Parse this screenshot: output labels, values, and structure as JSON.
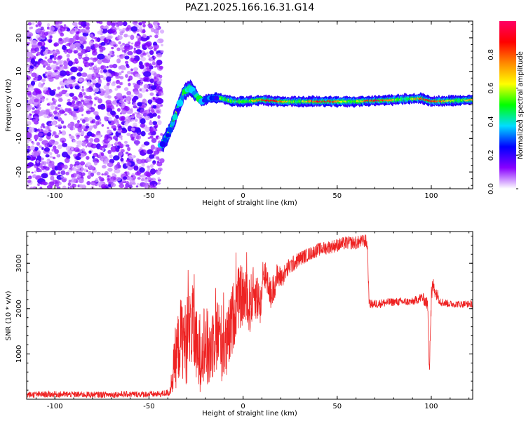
{
  "title": "PAZ1.2025.166.16.31.G14",
  "chart_data": [
    {
      "type": "heatmap",
      "xlabel": "Height of straight line (km)",
      "ylabel": "Frequency (Hz)",
      "xlim": [
        -115,
        122
      ],
      "ylim": [
        -25,
        25
      ],
      "x_ticks": [
        -100,
        -50,
        0,
        50,
        100
      ],
      "y_ticks": [
        -20,
        -10,
        0,
        10,
        20
      ],
      "colorbar": {
        "label": "Normalized spectral amplitude",
        "range": [
          0,
          1
        ],
        "ticks": [
          0.0,
          0.2,
          0.4,
          0.6,
          0.8
        ],
        "tick_labels": [
          "0.0",
          "0.2",
          "0.4",
          "0.6",
          "0.8"
        ],
        "colormap": [
          "#ffffff",
          "#8800ff",
          "#0000ff",
          "#00ddff",
          "#00ff00",
          "#ffff00",
          "#ff8800",
          "#ff0000",
          "#ff0066"
        ]
      },
      "noise_region": {
        "x_range": [
          -115,
          -43
        ],
        "y_range": [
          -25,
          25
        ],
        "level_range": [
          0.03,
          0.2
        ]
      },
      "ridge": [
        {
          "x": -43,
          "y": -12
        },
        {
          "x": -40,
          "y": -9
        },
        {
          "x": -37,
          "y": -5
        },
        {
          "x": -34,
          "y": 0
        },
        {
          "x": -31,
          "y": 4
        },
        {
          "x": -28,
          "y": 5
        },
        {
          "x": -25,
          "y": 3
        },
        {
          "x": -22,
          "y": 1
        },
        {
          "x": -18,
          "y": 2
        },
        {
          "x": -12,
          "y": 2
        },
        {
          "x": -5,
          "y": 1
        },
        {
          "x": 0,
          "y": 1
        },
        {
          "x": 10,
          "y": 1.5
        },
        {
          "x": 20,
          "y": 1
        },
        {
          "x": 40,
          "y": 1
        },
        {
          "x": 60,
          "y": 1
        },
        {
          "x": 80,
          "y": 1.5
        },
        {
          "x": 95,
          "y": 2
        },
        {
          "x": 100,
          "y": 1
        },
        {
          "x": 122,
          "y": 1.5
        }
      ]
    },
    {
      "type": "line",
      "xlabel": "Height of straight line (km)",
      "ylabel": "SNR (10 * v/v)",
      "xlim": [
        -115,
        122
      ],
      "ylim": [
        0,
        3700
      ],
      "x_ticks": [
        -100,
        -50,
        0,
        50,
        100
      ],
      "y_ticks": [
        1000,
        2000,
        3000
      ],
      "color": "#ee2222",
      "series": [
        {
          "x": [
            -115,
            -100,
            -80,
            -60,
            -45,
            -39,
            -36,
            -33,
            -30,
            -27,
            -24,
            -21,
            -18,
            -15,
            -12,
            -9,
            -6,
            -3,
            0,
            3,
            6,
            9,
            12,
            15,
            18,
            21,
            24,
            27,
            30,
            35,
            40,
            45,
            50,
            55,
            60,
            65,
            66,
            67,
            70,
            80,
            90,
            95,
            98,
            99,
            100,
            101,
            105,
            110,
            115,
            122
          ],
          "values": [
            100,
            110,
            100,
            110,
            110,
            150,
            900,
            1400,
            1200,
            1700,
            900,
            1300,
            1000,
            1500,
            1300,
            1100,
            1700,
            2200,
            2300,
            2000,
            2400,
            2100,
            2800,
            2300,
            2700,
            2700,
            2900,
            3000,
            3100,
            3200,
            3300,
            3350,
            3400,
            3450,
            3450,
            3500,
            3400,
            2100,
            2100,
            2150,
            2150,
            2250,
            2100,
            800,
            2200,
            2500,
            2150,
            2100,
            2100,
            2100
          ],
          "noise": [
            70,
            70,
            70,
            70,
            70,
            80,
            700,
            900,
            900,
            900,
            900,
            900,
            900,
            900,
            900,
            800,
            800,
            700,
            700,
            650,
            600,
            500,
            400,
            350,
            300,
            220,
            200,
            180,
            170,
            150,
            150,
            150,
            150,
            150,
            150,
            150,
            150,
            100,
            100,
            90,
            90,
            110,
            150,
            300,
            400,
            200,
            100,
            80,
            80,
            80
          ]
        }
      ]
    }
  ]
}
